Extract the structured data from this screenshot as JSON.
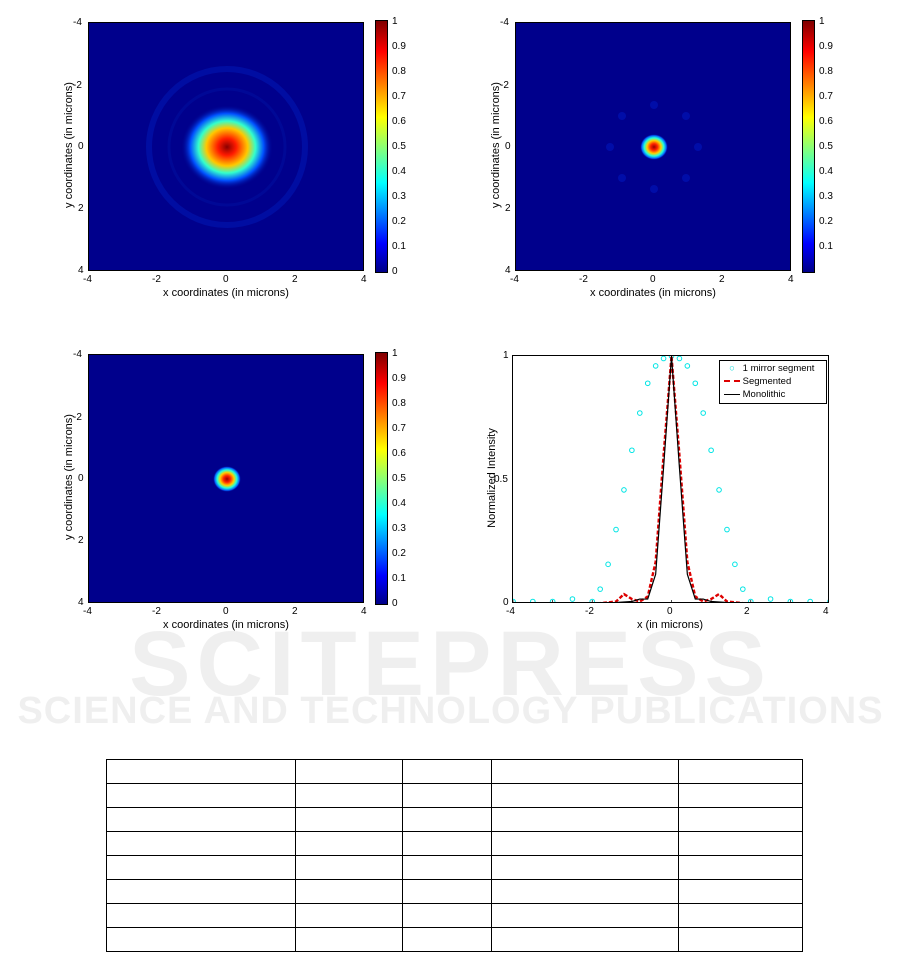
{
  "heatmaps": [
    {
      "id": "tl",
      "xlabel": "x coordinates (in microns)",
      "ylabel": "y coordinates (in microns)",
      "xticks": [
        "-4",
        "-2",
        "0",
        "2",
        "4"
      ],
      "yticks": [
        "-4",
        "-2",
        "0",
        "2",
        "4"
      ],
      "cbar_ticks": [
        "1",
        "0.9",
        "0.8",
        "0.7",
        "0.6",
        "0.5",
        "0.4",
        "0.3",
        "0.2",
        "0.1",
        "0"
      ]
    },
    {
      "id": "tr",
      "xlabel": "x coordinates (in microns)",
      "ylabel": "y coordinates (in microns)",
      "xticks": [
        "-4",
        "-2",
        "0",
        "2",
        "4"
      ],
      "yticks": [
        "-4",
        "-2",
        "0",
        "2",
        "4"
      ],
      "cbar_ticks": [
        "1",
        "0.9",
        "0.8",
        "0.7",
        "0.6",
        "0.5",
        "0.4",
        "0.3",
        "0.2",
        "0.1"
      ]
    },
    {
      "id": "bl",
      "xlabel": "x coordinates (in microns)",
      "ylabel": "y coordinates (in microns)",
      "xticks": [
        "-4",
        "-2",
        "0",
        "2",
        "4"
      ],
      "yticks": [
        "-4",
        "-2",
        "0",
        "2",
        "4"
      ],
      "cbar_ticks": [
        "1",
        "0.9",
        "0.8",
        "0.7",
        "0.6",
        "0.5",
        "0.4",
        "0.3",
        "0.2",
        "0.1",
        "0"
      ]
    }
  ],
  "lineplot": {
    "xlabel": "x (in microns)",
    "ylabel": "Normalized Intensity",
    "xticks": [
      "-4",
      "-2",
      "0",
      "2",
      "4"
    ],
    "yticks": [
      "1",
      "0.5",
      "0"
    ],
    "legend": [
      "1 mirror segment",
      "Segmented",
      "Monolithic"
    ]
  },
  "watermark": {
    "line1": "SCITEPRESS",
    "line2": "SCIENCE AND TECHNOLOGY PUBLICATIONS"
  },
  "chart_data": [
    {
      "type": "heatmap",
      "xlim": [
        -4,
        4
      ],
      "ylim": [
        -4,
        4
      ],
      "clim": [
        0,
        1
      ],
      "peak_at": [
        0,
        0
      ],
      "core_radius_microns": 1.0,
      "colormap": "jet"
    },
    {
      "type": "heatmap",
      "xlim": [
        -4,
        4
      ],
      "ylim": [
        -4,
        4
      ],
      "clim": [
        0,
        1
      ],
      "peak_at": [
        0,
        0
      ],
      "core_radius_microns": 0.35,
      "colormap": "jet"
    },
    {
      "type": "heatmap",
      "xlim": [
        -4,
        4
      ],
      "ylim": [
        -4,
        4
      ],
      "clim": [
        0,
        1
      ],
      "peak_at": [
        0,
        0
      ],
      "core_radius_microns": 0.35,
      "colormap": "jet"
    },
    {
      "type": "line",
      "xlim": [
        -4,
        4
      ],
      "ylim": [
        0,
        1
      ],
      "legend_position": "top-right",
      "series": [
        {
          "name": "1 mirror segment",
          "style": "circles",
          "color": "#00e5e5",
          "x": [
            -4,
            -3.5,
            -3,
            -2.5,
            -2,
            -1.8,
            -1.6,
            -1.4,
            -1.2,
            -1,
            -0.8,
            -0.6,
            -0.4,
            -0.2,
            0,
            0.2,
            0.4,
            0.6,
            0.8,
            1,
            1.2,
            1.4,
            1.6,
            1.8,
            2,
            2.5,
            3,
            3.5,
            4
          ],
          "y": [
            0.01,
            0.01,
            0.01,
            0.02,
            0.01,
            0.06,
            0.16,
            0.3,
            0.46,
            0.62,
            0.77,
            0.89,
            0.96,
            0.99,
            1,
            0.99,
            0.96,
            0.89,
            0.77,
            0.62,
            0.46,
            0.3,
            0.16,
            0.06,
            0.01,
            0.02,
            0.01,
            0.01,
            0.01
          ]
        },
        {
          "name": "Segmented",
          "style": "dashed",
          "color": "#dd0000",
          "x": [
            -4,
            -2,
            -1.4,
            -1.2,
            -1,
            -0.8,
            -0.6,
            -0.4,
            -0.2,
            0,
            0.2,
            0.4,
            0.6,
            0.8,
            1,
            1.2,
            1.4,
            2,
            4
          ],
          "y": [
            0,
            0,
            0.01,
            0.04,
            0.02,
            0.01,
            0.03,
            0.17,
            0.6,
            1,
            0.6,
            0.17,
            0.03,
            0.01,
            0.02,
            0.04,
            0.01,
            0,
            0
          ]
        },
        {
          "name": "Monolithic",
          "style": "solid",
          "color": "#000000",
          "x": [
            -4,
            -2,
            -1,
            -0.8,
            -0.6,
            -0.4,
            -0.2,
            0,
            0.2,
            0.4,
            0.6,
            0.8,
            1,
            2,
            4
          ],
          "y": [
            0,
            0,
            0.01,
            0.02,
            0.02,
            0.12,
            0.55,
            1,
            0.55,
            0.12,
            0.02,
            0.02,
            0.01,
            0,
            0
          ]
        }
      ]
    }
  ]
}
